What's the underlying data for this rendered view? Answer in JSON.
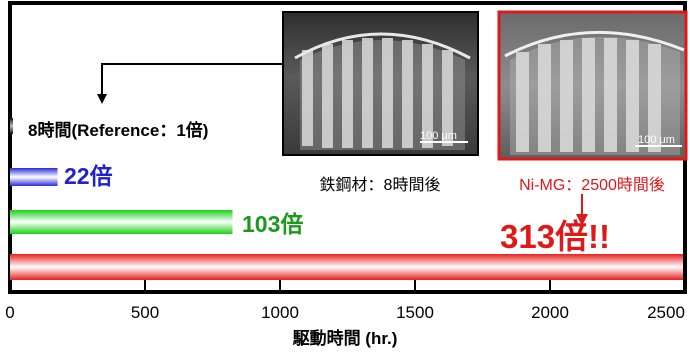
{
  "chart_data": {
    "type": "bar",
    "orientation": "horizontal",
    "xlabel": "駆動時間 (hr.)",
    "ylabel": "",
    "xlim": [
      0,
      2500
    ],
    "xticks": [
      "0",
      "500",
      "1000",
      "1500",
      "2000",
      "2500"
    ],
    "bars": [
      {
        "value": 8,
        "label": "8時間(Reference：1倍)",
        "color": "#000000"
      },
      {
        "value": 176,
        "label": "22倍",
        "color": "#2222cc"
      },
      {
        "value": 824,
        "label": "103倍",
        "color": "#1a9a1a"
      },
      {
        "value": 2504,
        "label": "313倍!!",
        "color": "#e01818"
      }
    ],
    "annotations": [
      {
        "name": "steel",
        "caption": "鉄鋼材：8時間後",
        "scale_bar": "100 μm",
        "border_color": "#000000"
      },
      {
        "name": "nimg",
        "caption": "Ni-MG：2500時間後",
        "scale_bar": "100 μm",
        "border_color": "#e01818",
        "caption_color": "#e01818"
      }
    ]
  }
}
